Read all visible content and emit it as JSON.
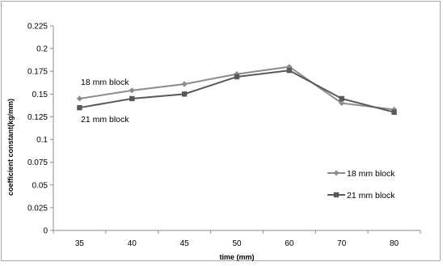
{
  "chart_data": {
    "type": "line",
    "title": "",
    "xlabel": "time (mm)",
    "ylabel": "coefficient constant(kg/mm)",
    "categories": [
      "35",
      "40",
      "45",
      "50",
      "60",
      "70",
      "80"
    ],
    "ylim": [
      0,
      0.225
    ],
    "yticks": [
      "0",
      "0.025",
      "0.05",
      "0.075",
      "0.1",
      "0.125",
      "0.15",
      "0.175",
      "0.2",
      "0.225"
    ],
    "grid": false,
    "legend_position": "right",
    "series": [
      {
        "name": "18 mm block",
        "marker": "diamond",
        "color": "#8c8c8c",
        "values": [
          0.145,
          0.154,
          0.161,
          0.172,
          0.18,
          0.14,
          0.133
        ]
      },
      {
        "name": "21 mm block",
        "marker": "square",
        "color": "#595959",
        "values": [
          0.135,
          0.145,
          0.15,
          0.169,
          0.176,
          0.145,
          0.13
        ]
      }
    ],
    "annotations": [
      "18 mm block",
      "21 mm block"
    ]
  }
}
